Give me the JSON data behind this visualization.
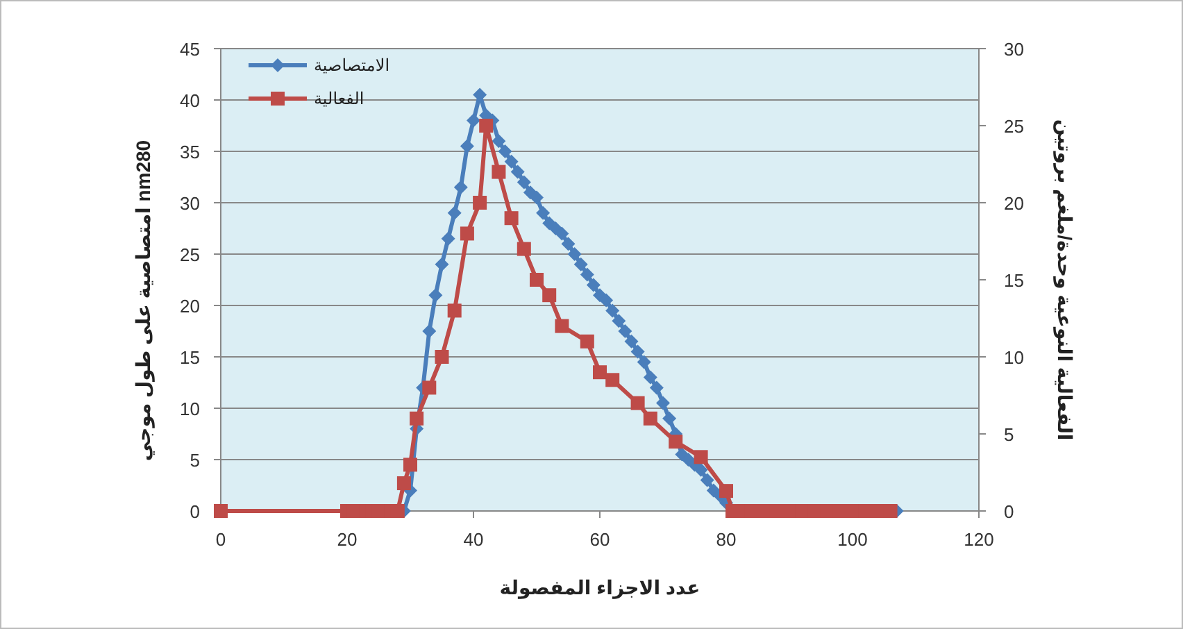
{
  "chart_data": {
    "type": "line",
    "xlabel": "عدد الاجزاء المفصولة",
    "ylabel": "امتصاصية على طول موجي nm280",
    "y2label": "الفعالية النوعية وحدة/ملغم بروتين",
    "xlim": [
      0,
      120
    ],
    "xticks": [
      0,
      20,
      40,
      60,
      80,
      100,
      120
    ],
    "ylim": [
      0,
      45
    ],
    "yticks": [
      0,
      5,
      10,
      15,
      20,
      25,
      30,
      35,
      40,
      45
    ],
    "y2lim": [
      0,
      30
    ],
    "y2ticks": [
      0,
      5,
      10,
      15,
      20,
      25,
      30
    ],
    "grid": "y",
    "legend": "top left",
    "series": [
      {
        "name": "الامتصاصية",
        "color": "#4a7ebb",
        "marker": "diamond",
        "x": [
          29,
          30,
          31,
          32,
          33,
          34,
          35,
          36,
          37,
          38,
          39,
          40,
          41,
          42,
          43,
          44,
          45,
          46,
          47,
          48,
          49,
          50,
          51,
          52,
          53,
          54,
          55,
          56,
          57,
          58,
          59,
          60,
          61,
          62,
          63,
          64,
          65,
          66,
          67,
          68,
          69,
          70,
          71,
          72,
          73,
          74,
          75,
          76,
          77,
          78,
          79,
          80,
          81,
          84,
          88,
          92,
          96,
          100,
          104,
          107
        ],
        "values": [
          0,
          2,
          8,
          12,
          17.5,
          21,
          24,
          26.5,
          29,
          31.5,
          35.5,
          38,
          40.5,
          38.5,
          38,
          36,
          35,
          34,
          33,
          32,
          31,
          30.5,
          29,
          28,
          27.5,
          27,
          26,
          25,
          24,
          23,
          22,
          21,
          20.5,
          19.5,
          18.5,
          17.5,
          16.5,
          15.5,
          14.5,
          13,
          12,
          10.5,
          9,
          7.5,
          5.5,
          5,
          4.5,
          4,
          3,
          2,
          1.5,
          0.8,
          0,
          0,
          0,
          0,
          0,
          0,
          0,
          0
        ]
      },
      {
        "name": "الفعالية",
        "color": "#be4b48",
        "marker": "square",
        "axis": "y2",
        "x": [
          0,
          20,
          21,
          22,
          23,
          24,
          25,
          26,
          27,
          28,
          29,
          30,
          31,
          33,
          35,
          37,
          39,
          41,
          42,
          44,
          46,
          48,
          50,
          52,
          54,
          58,
          60,
          62,
          66,
          68,
          72,
          76,
          80,
          81,
          82,
          84,
          86,
          88,
          90,
          92,
          94,
          96,
          98,
          100,
          102,
          104,
          106
        ],
        "values": [
          0,
          0,
          0,
          0,
          0,
          0,
          0,
          0,
          0,
          0,
          1.8,
          3,
          6,
          8,
          10,
          13,
          18,
          20,
          25,
          22,
          19,
          17,
          15,
          14,
          12,
          11,
          9,
          8.5,
          7,
          6,
          4.5,
          3.5,
          1.3,
          0,
          0,
          0,
          0,
          0,
          0,
          0,
          0,
          0,
          0,
          0,
          0,
          0,
          0
        ]
      }
    ]
  }
}
